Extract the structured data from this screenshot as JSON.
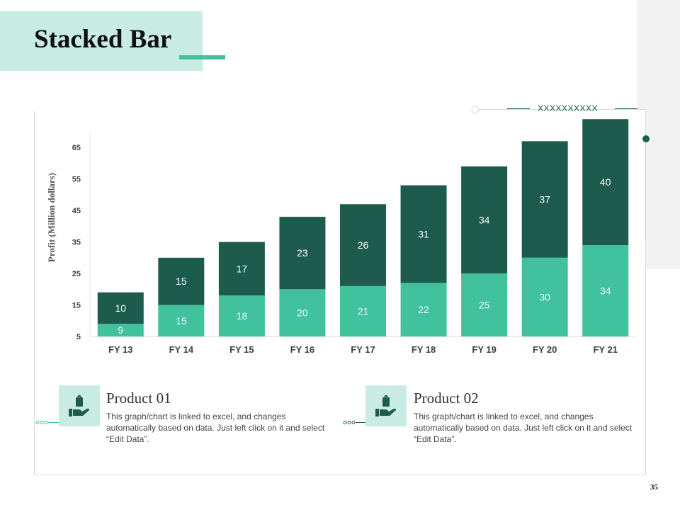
{
  "slide": {
    "title": "Stacked Bar",
    "page_number": "35",
    "decoration_text": "XXXXXXXXXX"
  },
  "chart_data": {
    "type": "bar",
    "stacked": true,
    "categories": [
      "FY 13",
      "FY 14",
      "FY 15",
      "FY 16",
      "FY 17",
      "FY 18",
      "FY 19",
      "FY 20",
      "FY 21"
    ],
    "series": [
      {
        "name": "Product 01",
        "values": [
          9,
          15,
          18,
          20,
          21,
          22,
          25,
          30,
          34
        ],
        "color": "#41c19c",
        "label_color": "#e9fbf4"
      },
      {
        "name": "Product 02",
        "values": [
          10,
          15,
          17,
          23,
          26,
          31,
          34,
          37,
          40
        ],
        "color": "#1d5c4c",
        "label_color": "#ffffff"
      }
    ],
    "ylabel": "Profit (Million dollars)",
    "yticks": [
      5,
      15,
      25,
      35,
      45,
      55,
      65
    ],
    "ylim": [
      5,
      70
    ],
    "legend": "none"
  },
  "products": [
    {
      "title": "Product 01",
      "description": "This graph/chart is linked to excel, and changes automatically based on data. Just left click on it and select “Edit Data”.",
      "icon": "hand-holding-bag-icon"
    },
    {
      "title": "Product 02",
      "description": "This graph/chart is linked to excel, and changes automatically based on data. Just left click on it and select “Edit Data”.",
      "icon": "hand-holding-bag-icon"
    }
  ],
  "colors": {
    "accent": "#41c19c",
    "dark": "#1d5c4c",
    "title_bg": "#c8ece4"
  }
}
